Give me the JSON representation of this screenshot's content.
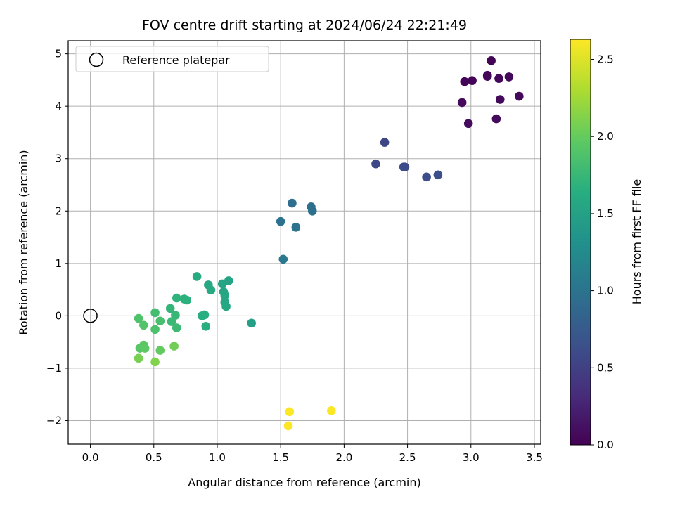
{
  "chart_data": {
    "type": "scatter",
    "title": "FOV centre drift starting at 2024/06/24 22:21:49",
    "xlabel": "Angular distance from reference (arcmin)",
    "ylabel": "Rotation from reference (arcmin)",
    "xlim": [
      -0.175,
      3.55
    ],
    "ylim": [
      -2.45,
      5.25
    ],
    "xticks": [
      0.0,
      0.5,
      1.0,
      1.5,
      2.0,
      2.5,
      3.0,
      3.5
    ],
    "xtick_labels": [
      "0.0",
      "0.5",
      "1.0",
      "1.5",
      "2.0",
      "2.5",
      "3.0",
      "3.5"
    ],
    "yticks": [
      -2,
      -1,
      0,
      1,
      2,
      3,
      4,
      5
    ],
    "ytick_labels": [
      "−2",
      "−1",
      "0",
      "1",
      "2",
      "3",
      "4",
      "5"
    ],
    "grid": true,
    "legend": {
      "position": "top-left",
      "entries": [
        "Reference platepar"
      ]
    },
    "reference": {
      "x": 0.0,
      "y": 0.0
    },
    "colorbar": {
      "label": "Hours from first FF file",
      "colormap": "viridis",
      "range": [
        0.0,
        2.63
      ],
      "ticks": [
        0.0,
        0.5,
        1.0,
        1.5,
        2.0,
        2.5
      ],
      "tick_labels": [
        "0.0",
        "0.5",
        "1.0",
        "1.5",
        "2.0",
        "2.5"
      ]
    },
    "points": [
      {
        "x": 3.16,
        "y": 4.87,
        "c": 0.02
      },
      {
        "x": 2.95,
        "y": 4.47,
        "c": 0.03
      },
      {
        "x": 3.01,
        "y": 4.49,
        "c": 0.03
      },
      {
        "x": 3.13,
        "y": 4.59,
        "c": 0.04
      },
      {
        "x": 3.13,
        "y": 4.57,
        "c": 0.04
      },
      {
        "x": 3.22,
        "y": 4.53,
        "c": 0.05
      },
      {
        "x": 3.3,
        "y": 4.56,
        "c": 0.05
      },
      {
        "x": 3.23,
        "y": 4.13,
        "c": 0.06
      },
      {
        "x": 3.38,
        "y": 4.19,
        "c": 0.06
      },
      {
        "x": 2.93,
        "y": 4.07,
        "c": 0.07
      },
      {
        "x": 2.98,
        "y": 3.67,
        "c": 0.08
      },
      {
        "x": 3.2,
        "y": 3.76,
        "c": 0.08
      },
      {
        "x": 2.32,
        "y": 3.31,
        "c": 0.55
      },
      {
        "x": 2.25,
        "y": 2.9,
        "c": 0.57
      },
      {
        "x": 2.47,
        "y": 2.84,
        "c": 0.6
      },
      {
        "x": 2.48,
        "y": 2.84,
        "c": 0.6
      },
      {
        "x": 2.65,
        "y": 2.65,
        "c": 0.62
      },
      {
        "x": 2.74,
        "y": 2.69,
        "c": 0.63
      },
      {
        "x": 1.59,
        "y": 2.15,
        "c": 0.95
      },
      {
        "x": 1.74,
        "y": 2.08,
        "c": 0.97
      },
      {
        "x": 1.75,
        "y": 2.0,
        "c": 0.97
      },
      {
        "x": 1.5,
        "y": 1.8,
        "c": 0.99
      },
      {
        "x": 1.62,
        "y": 1.69,
        "c": 1.0
      },
      {
        "x": 1.52,
        "y": 1.08,
        "c": 1.05
      },
      {
        "x": 1.27,
        "y": -0.14,
        "c": 1.48
      },
      {
        "x": 1.09,
        "y": 0.67,
        "c": 1.52
      },
      {
        "x": 1.04,
        "y": 0.61,
        "c": 1.53
      },
      {
        "x": 1.05,
        "y": 0.46,
        "c": 1.54
      },
      {
        "x": 1.06,
        "y": 0.39,
        "c": 1.55
      },
      {
        "x": 1.06,
        "y": 0.26,
        "c": 1.55
      },
      {
        "x": 1.07,
        "y": 0.18,
        "c": 1.56
      },
      {
        "x": 0.93,
        "y": 0.59,
        "c": 1.58
      },
      {
        "x": 0.95,
        "y": 0.49,
        "c": 1.59
      },
      {
        "x": 0.84,
        "y": 0.75,
        "c": 1.61
      },
      {
        "x": 0.88,
        "y": 0.0,
        "c": 1.63
      },
      {
        "x": 0.9,
        "y": 0.02,
        "c": 1.64
      },
      {
        "x": 0.91,
        "y": -0.2,
        "c": 1.65
      },
      {
        "x": 0.74,
        "y": 0.32,
        "c": 1.66
      },
      {
        "x": 0.76,
        "y": 0.3,
        "c": 1.67
      },
      {
        "x": 0.68,
        "y": 0.34,
        "c": 1.69
      },
      {
        "x": 0.63,
        "y": 0.14,
        "c": 1.72
      },
      {
        "x": 0.67,
        "y": 0.01,
        "c": 1.74
      },
      {
        "x": 0.64,
        "y": -0.11,
        "c": 1.76
      },
      {
        "x": 0.68,
        "y": -0.23,
        "c": 1.78
      },
      {
        "x": 0.51,
        "y": 0.06,
        "c": 1.82
      },
      {
        "x": 0.55,
        "y": -0.1,
        "c": 1.84
      },
      {
        "x": 0.51,
        "y": -0.26,
        "c": 1.86
      },
      {
        "x": 0.38,
        "y": -0.05,
        "c": 1.88
      },
      {
        "x": 0.42,
        "y": -0.18,
        "c": 1.9
      },
      {
        "x": 0.39,
        "y": -0.62,
        "c": 1.93
      },
      {
        "x": 0.42,
        "y": -0.56,
        "c": 1.95
      },
      {
        "x": 0.43,
        "y": -0.62,
        "c": 1.96
      },
      {
        "x": 0.55,
        "y": -0.66,
        "c": 1.99
      },
      {
        "x": 0.66,
        "y": -0.58,
        "c": 2.05
      },
      {
        "x": 0.38,
        "y": -0.81,
        "c": 2.08
      },
      {
        "x": 0.51,
        "y": -0.88,
        "c": 2.12
      },
      {
        "x": 1.57,
        "y": -1.83,
        "c": 2.62
      },
      {
        "x": 1.9,
        "y": -1.81,
        "c": 2.62
      },
      {
        "x": 1.56,
        "y": -2.1,
        "c": 2.63
      }
    ]
  }
}
